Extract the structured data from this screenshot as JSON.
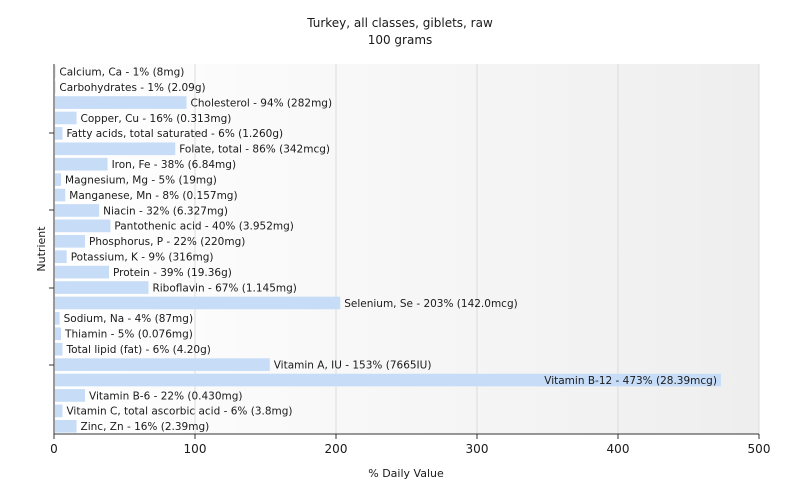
{
  "chart_data": {
    "type": "bar",
    "orientation": "horizontal",
    "title": "Turkey, all classes, giblets, raw",
    "subtitle": "100 grams",
    "xlabel": "% Daily Value",
    "ylabel": "Nutrient",
    "xlim": [
      0,
      500
    ],
    "xticks": [
      "0",
      "100",
      "200",
      "300",
      "400",
      "500"
    ],
    "grid": true,
    "bar_color": "#c6dcf7",
    "bars": [
      {
        "name": "Calcium, Ca",
        "value": 1,
        "label": "Calcium, Ca - 1% (8mg)"
      },
      {
        "name": "Carbohydrates",
        "value": 1,
        "label": "Carbohydrates - 1% (2.09g)"
      },
      {
        "name": "Cholesterol",
        "value": 94,
        "label": "Cholesterol - 94% (282mg)"
      },
      {
        "name": "Copper, Cu",
        "value": 16,
        "label": "Copper, Cu - 16% (0.313mg)"
      },
      {
        "name": "Fatty acids, total saturated",
        "value": 6,
        "label": "Fatty acids, total saturated - 6% (1.260g)"
      },
      {
        "name": "Folate, total",
        "value": 86,
        "label": "Folate, total - 86% (342mcg)"
      },
      {
        "name": "Iron, Fe",
        "value": 38,
        "label": "Iron, Fe - 38% (6.84mg)"
      },
      {
        "name": "Magnesium, Mg",
        "value": 5,
        "label": "Magnesium, Mg - 5% (19mg)"
      },
      {
        "name": "Manganese, Mn",
        "value": 8,
        "label": "Manganese, Mn - 8% (0.157mg)"
      },
      {
        "name": "Niacin",
        "value": 32,
        "label": "Niacin - 32% (6.327mg)"
      },
      {
        "name": "Pantothenic acid",
        "value": 40,
        "label": "Pantothenic acid - 40% (3.952mg)"
      },
      {
        "name": "Phosphorus, P",
        "value": 22,
        "label": "Phosphorus, P - 22% (220mg)"
      },
      {
        "name": "Potassium, K",
        "value": 9,
        "label": "Potassium, K - 9% (316mg)"
      },
      {
        "name": "Protein",
        "value": 39,
        "label": "Protein - 39% (19.36g)"
      },
      {
        "name": "Riboflavin",
        "value": 67,
        "label": "Riboflavin - 67% (1.145mg)"
      },
      {
        "name": "Selenium, Se",
        "value": 203,
        "label": "Selenium, Se - 203% (142.0mcg)"
      },
      {
        "name": "Sodium, Na",
        "value": 4,
        "label": "Sodium, Na - 4% (87mg)"
      },
      {
        "name": "Thiamin",
        "value": 5,
        "label": "Thiamin - 5% (0.076mg)"
      },
      {
        "name": "Total lipid (fat)",
        "value": 6,
        "label": "Total lipid (fat) - 6% (4.20g)"
      },
      {
        "name": "Vitamin A, IU",
        "value": 153,
        "label": "Vitamin A, IU - 153% (7665IU)"
      },
      {
        "name": "Vitamin B-12",
        "value": 473,
        "label": "Vitamin B-12 - 473% (28.39mcg)"
      },
      {
        "name": "Vitamin B-6",
        "value": 22,
        "label": "Vitamin B-6 - 22% (0.430mg)"
      },
      {
        "name": "Vitamin C, total ascorbic acid",
        "value": 6,
        "label": "Vitamin C, total ascorbic acid - 6% (3.8mg)"
      },
      {
        "name": "Zinc, Zn",
        "value": 16,
        "label": "Zinc, Zn - 16% (2.39mg)"
      }
    ]
  }
}
